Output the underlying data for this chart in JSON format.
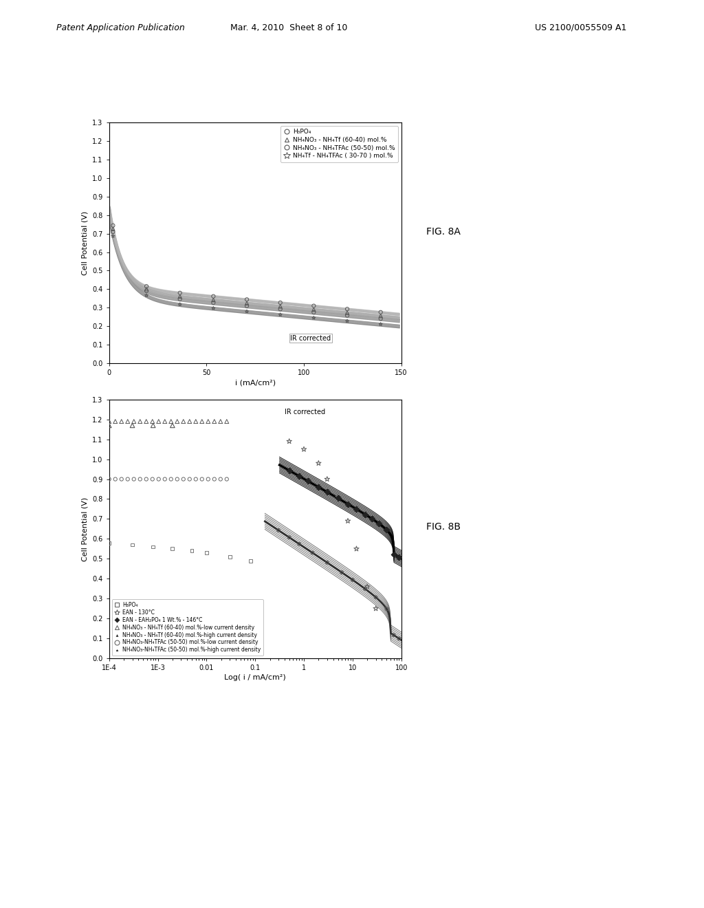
{
  "fig_label_a": "FIG. 8A",
  "fig_label_b": "FIG. 8B",
  "header_text": "Patent Application Publication",
  "header_date": "Mar. 4, 2010  Sheet 8 of 10",
  "header_patent": "US 2100/0055509 A1",
  "plot_a": {
    "ylabel": "Cell Potential (V)",
    "xlabel": "i (mA/cm²)",
    "ylim": [
      0.0,
      1.3
    ],
    "xlim": [
      0,
      150
    ],
    "yticks": [
      0.0,
      0.1,
      0.2,
      0.3,
      0.4,
      0.5,
      0.6,
      0.7,
      0.8,
      0.9,
      1.0,
      1.1,
      1.2,
      1.3
    ],
    "xticks": [
      0,
      50,
      100,
      150
    ],
    "ir_corrected_text": "IR corrected",
    "legend_labels": [
      "H₃PO₄",
      "NH₄NO₃ - NH₄Tf (60-40) mol.%",
      "NH₄NO₃ - NH₄TFAc (50-50) mol.%",
      "NH₄Tf - NH₄TFAc ( 30-70 ) mol.%"
    ],
    "legend_markers": [
      "o",
      "^",
      "o",
      "*"
    ]
  },
  "plot_b": {
    "ylabel": "Cell Potential (V)",
    "xlabel": "Log( i / mA/cm²)",
    "ylim": [
      0.0,
      1.3
    ],
    "yticks": [
      0.0,
      0.1,
      0.2,
      0.3,
      0.4,
      0.5,
      0.6,
      0.7,
      0.8,
      0.9,
      1.0,
      1.1,
      1.2,
      1.3
    ],
    "xtick_labels": [
      "1E-4",
      "1E-3",
      "0.01",
      "0.1",
      "1",
      "10",
      "100"
    ],
    "xtick_vals": [
      0.0001,
      0.001,
      0.01,
      0.1,
      1,
      10,
      100
    ],
    "ir_corrected_text": "IR corrected",
    "legend_labels": [
      "H₃PO₄",
      "EAN - 130°C",
      "EAN - EAH₂PO₄ 1 Wt.% - 146°C",
      "NH₄NO₃ - NH₄Tf (60-40) mol.%-low current density",
      "NH₄NO₃ - NH₄Tf (60-40) mol.%-high current density",
      "NH₄NO₃-NH₄TFAc (50-50) mol.%-low current density",
      "NH₄NO₃-NH₄TFAc (50-50) mol.%-high current density"
    ]
  },
  "bg_color": "#ffffff"
}
